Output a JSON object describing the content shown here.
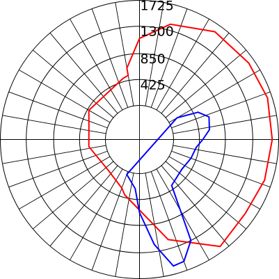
{
  "chart_data": {
    "type": "polar-line",
    "title": "",
    "radial_ticks": [
      425,
      850,
      1300,
      1725
    ],
    "radial_tick_labels": [
      "425",
      "850",
      "1300",
      "1725"
    ],
    "rmax": 1725,
    "angle_step_deg": 10,
    "grid": true,
    "angle_convention": "degrees clockwise from top (0 = up, 180 = down)",
    "series": [
      {
        "color": "#ff0000",
        "points": [
          {
            "angle": -10,
            "r": 630
          },
          {
            "angle": 0,
            "r": 1100
          },
          {
            "angle": 15,
            "r": 1400
          },
          {
            "angle": 35,
            "r": 1600
          },
          {
            "angle": 55,
            "r": 1630
          },
          {
            "angle": 72,
            "r": 1650
          },
          {
            "angle": 90,
            "r": 1620
          },
          {
            "angle": 108,
            "r": 1600
          },
          {
            "angle": 125,
            "r": 1560
          },
          {
            "angle": 143,
            "r": 1640
          },
          {
            "angle": 164,
            "r": 1150
          },
          {
            "angle": 195,
            "r": 380
          },
          {
            "angle": 200,
            "r": 290
          },
          {
            "angle": 225,
            "r": 160
          },
          {
            "angle": 262,
            "r": 280
          },
          {
            "angle": 285,
            "r": 300
          },
          {
            "angle": 300,
            "r": 400
          },
          {
            "angle": 345,
            "r": 480
          },
          {
            "angle": 350,
            "r": 510
          }
        ]
      },
      {
        "color": "#0000ff",
        "points": [
          {
            "angle": 60,
            "r": 150
          },
          {
            "angle": 65,
            "r": 500
          },
          {
            "angle": 72,
            "r": 640
          },
          {
            "angle": 82,
            "r": 600
          },
          {
            "angle": 90,
            "r": 480
          },
          {
            "angle": 98,
            "r": 380
          },
          {
            "angle": 110,
            "r": 340
          },
          {
            "angle": 125,
            "r": 290
          },
          {
            "angle": 145,
            "r": 360
          },
          {
            "angle": 153,
            "r": 1300
          },
          {
            "angle": 160,
            "r": 1570
          },
          {
            "angle": 165,
            "r": 1590
          },
          {
            "angle": 172,
            "r": 1180
          },
          {
            "angle": 180,
            "r": 640
          },
          {
            "angle": 185,
            "r": 250
          },
          {
            "angle": 200,
            "r": 50
          }
        ]
      }
    ]
  }
}
